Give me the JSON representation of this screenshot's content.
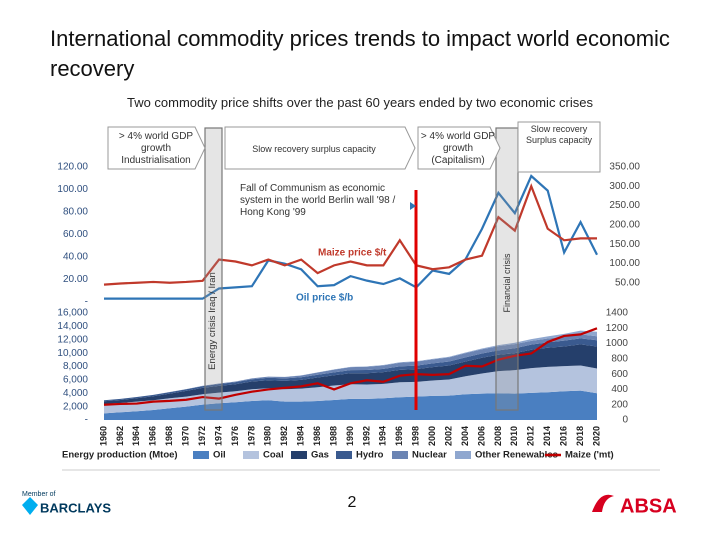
{
  "title": "International commodity prices trends to impact world economic recovery",
  "subtitle": "Two commodity price shifts over the past 60 years ended by two economic crises",
  "phases": [
    "> 4% world GDP growth Industrialisation",
    "Slow recovery surplus capacity",
    "> 4% world GDP growth (Capitalism)",
    "Slow recovery Surplus capacity"
  ],
  "events": [
    "Fall of Communism as economic system in the world Berlin wall '98 / Hong Kong '99",
    "Energy crisis Iraq / Iran",
    "Financial crisis"
  ],
  "footer": {
    "member_of": "Member of",
    "barclays": "BARCLAYS",
    "page": "2",
    "absa": "ABSA"
  },
  "chart_data": [
    {
      "type": "line",
      "x": [
        1960,
        1962,
        1964,
        1966,
        1968,
        1970,
        1972,
        1974,
        1976,
        1978,
        1980,
        1982,
        1984,
        1986,
        1988,
        1990,
        1992,
        1994,
        1996,
        1998,
        2000,
        2002,
        2004,
        2006,
        2008,
        2010,
        2012,
        2014,
        2016,
        2018,
        2020
      ],
      "xlim": [
        1960,
        2020
      ],
      "ylim": [
        0,
        120
      ],
      "yticks": [
        {
          "value": 0,
          "label": "-"
        },
        {
          "value": 20,
          "label": "20.00"
        },
        {
          "value": 40,
          "label": "40.00"
        },
        {
          "value": 60,
          "label": "60.00"
        },
        {
          "value": 80,
          "label": "80.00"
        },
        {
          "value": 100,
          "label": "100.00"
        },
        {
          "value": 120,
          "label": "120.00"
        }
      ],
      "y2lim": [
        0,
        350
      ],
      "y2ticks": [
        {
          "value": 50,
          "label": "50.00"
        },
        {
          "value": 100,
          "label": "100.00"
        },
        {
          "value": 150,
          "label": "150.00"
        },
        {
          "value": 200,
          "label": "200.00"
        },
        {
          "value": 250,
          "label": "250.00"
        },
        {
          "value": 300,
          "label": "300.00"
        },
        {
          "value": 350,
          "label": "350.00"
        }
      ],
      "grid": false,
      "series": [
        {
          "name": "Oil price $/b",
          "color": "#2e75b6",
          "values": [
            3,
            3,
            3,
            3,
            3,
            3,
            3,
            12,
            13,
            14,
            37,
            34,
            29,
            14,
            15,
            23,
            19,
            16,
            21,
            13,
            28,
            25,
            38,
            65,
            97,
            79,
            112,
            99,
            44,
            71,
            42
          ]
        },
        {
          "name": "Maize price $/t",
          "color": "#c0392b",
          "axis": "y2",
          "values": [
            45,
            48,
            50,
            52,
            50,
            52,
            55,
            110,
            105,
            95,
            110,
            95,
            110,
            75,
            95,
            105,
            95,
            95,
            160,
            95,
            85,
            90,
            110,
            120,
            220,
            185,
            300,
            190,
            160,
            165,
            165
          ]
        }
      ]
    },
    {
      "type": "area",
      "x": [
        1960,
        1962,
        1964,
        1966,
        1968,
        1970,
        1972,
        1974,
        1976,
        1978,
        1980,
        1982,
        1984,
        1986,
        1988,
        1990,
        1992,
        1994,
        1996,
        1998,
        2000,
        2002,
        2004,
        2006,
        2008,
        2010,
        2012,
        2014,
        2016,
        2018,
        2020
      ],
      "xlim": [
        1960,
        2020
      ],
      "xticks": [
        1960,
        1962,
        1964,
        1966,
        1968,
        1970,
        1972,
        1974,
        1976,
        1978,
        1980,
        1982,
        1984,
        1986,
        1988,
        1990,
        1992,
        1994,
        1996,
        1998,
        2000,
        2002,
        2004,
        2006,
        2008,
        2010,
        2012,
        2014,
        2016,
        2018,
        2020
      ],
      "ylim": [
        0,
        16000
      ],
      "yticks": [
        {
          "value": 0,
          "label": "-"
        },
        {
          "value": 2000,
          "label": "2,000"
        },
        {
          "value": 4000,
          "label": "4,000"
        },
        {
          "value": 6000,
          "label": "6,000"
        },
        {
          "value": 8000,
          "label": "8,000"
        },
        {
          "value": 10000,
          "label": "10,000"
        },
        {
          "value": 12000,
          "label": "12,000"
        },
        {
          "value": 14000,
          "label": "14,000"
        },
        {
          "value": 16000,
          "label": "16,000"
        }
      ],
      "y2lim": [
        0,
        1400
      ],
      "y2ticks": [
        0,
        200,
        400,
        600,
        800,
        1000,
        1200,
        1400
      ],
      "stacked": true,
      "legend_title": "Energy production (Mtoe)",
      "series": [
        {
          "name": "Oil",
          "color": "#4a7fc1",
          "values": [
            1000,
            1150,
            1300,
            1500,
            1750,
            2000,
            2300,
            2500,
            2650,
            2850,
            2950,
            2750,
            2750,
            2850,
            3000,
            3150,
            3150,
            3250,
            3400,
            3500,
            3600,
            3650,
            3850,
            3950,
            4000,
            3950,
            4050,
            4150,
            4300,
            4400,
            4000
          ]
        },
        {
          "name": "Coal",
          "color": "#b4c3de",
          "values": [
            1400,
            1400,
            1450,
            1450,
            1500,
            1500,
            1550,
            1600,
            1650,
            1750,
            1800,
            1850,
            1950,
            2050,
            2150,
            2200,
            2150,
            2150,
            2250,
            2200,
            2300,
            2400,
            2700,
            3000,
            3300,
            3500,
            3700,
            3800,
            3750,
            3750,
            3700
          ]
        },
        {
          "name": "Gas",
          "color": "#253f6b",
          "values": [
            400,
            450,
            500,
            600,
            700,
            850,
            950,
            1000,
            1050,
            1150,
            1200,
            1250,
            1300,
            1450,
            1550,
            1650,
            1700,
            1750,
            1850,
            1900,
            2000,
            2100,
            2200,
            2350,
            2450,
            2550,
            2750,
            2850,
            2950,
            3150,
            3300
          ]
        },
        {
          "name": "Hydro",
          "color": "#3a5a8f",
          "values": [
            150,
            160,
            180,
            200,
            220,
            250,
            270,
            290,
            310,
            340,
            370,
            380,
            400,
            420,
            430,
            450,
            470,
            490,
            510,
            540,
            560,
            590,
            610,
            640,
            670,
            720,
            770,
            810,
            860,
            900,
            920
          ]
        },
        {
          "name": "Nuclear",
          "color": "#6b84b3",
          "values": [
            0,
            0,
            5,
            10,
            15,
            20,
            40,
            60,
            90,
            130,
            160,
            200,
            250,
            330,
            400,
            460,
            500,
            530,
            560,
            580,
            600,
            620,
            640,
            640,
            630,
            630,
            570,
            570,
            590,
            610,
            600
          ]
        },
        {
          "name": "Other Renewables",
          "color": "#8fa7cf",
          "values": [
            0,
            0,
            0,
            0,
            5,
            5,
            5,
            5,
            10,
            10,
            15,
            20,
            25,
            30,
            35,
            40,
            45,
            50,
            60,
            70,
            80,
            90,
            100,
            120,
            150,
            200,
            250,
            330,
            420,
            560,
            680
          ]
        },
        {
          "name": "Maize ('mt)",
          "color": "#c00000",
          "type": "line",
          "axis": "y2",
          "values": [
            200,
            210,
            215,
            240,
            250,
            265,
            300,
            280,
            330,
            370,
            400,
            420,
            440,
            480,
            400,
            480,
            520,
            500,
            580,
            600,
            590,
            600,
            710,
            700,
            790,
            840,
            870,
            1020,
            1100,
            1120,
            1200
          ]
        }
      ]
    }
  ]
}
